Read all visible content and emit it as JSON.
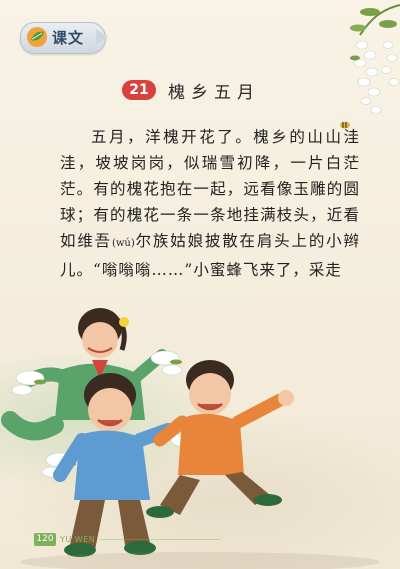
{
  "badge": {
    "label": "课文"
  },
  "lesson": {
    "number": "21",
    "title": "槐乡五月"
  },
  "text": {
    "part1": "五月，洋槐开花了。槐乡的山山洼洼，坡坡岗岗，似瑞雪初降，一片白茫茫。有的槐花抱在一起，远看像玉雕的圆球；有的槐花一条一条地挂满枝头，近看如维吾",
    "pinyin": "(wú)",
    "part2": "尔族姑娘披散在肩头上的小辫儿。“嗡嗡嗡……”小蜜蜂飞来了，采走"
  },
  "footer": {
    "page_number": "120",
    "brand": "YU WEN"
  },
  "colors": {
    "accent_red": "#d7433a",
    "accent_green": "#7db25a",
    "badge_blue": "#2f4b6a"
  }
}
